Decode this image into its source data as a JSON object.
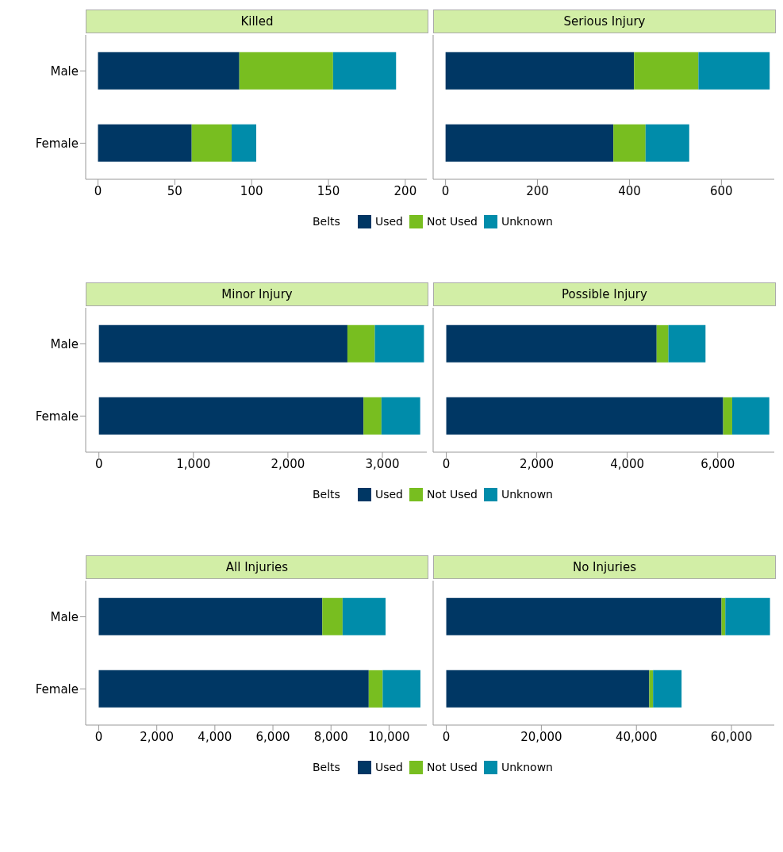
{
  "chart_data": [
    {
      "type": "bar",
      "title": "Killed",
      "orientation": "horizontal",
      "stacked": true,
      "categories": [
        "Male",
        "Female"
      ],
      "xlim": [
        -8,
        214
      ],
      "xticks": [
        0,
        50,
        100,
        150,
        200
      ],
      "legend": "bottom",
      "legend_title": "Belts",
      "grid": false,
      "series": [
        {
          "name": "Used",
          "color": "#003764",
          "values": [
            92,
            61
          ]
        },
        {
          "name": "Not Used",
          "color": "#78be20",
          "values": [
            61,
            26
          ]
        },
        {
          "name": "Unknown",
          "color": "#008caa",
          "values": [
            41,
            16
          ]
        }
      ]
    },
    {
      "type": "bar",
      "title": "Serious Injury",
      "orientation": "horizontal",
      "stacked": true,
      "categories": [
        null,
        null
      ],
      "xlim": [
        -27,
        715
      ],
      "xticks": [
        0,
        200,
        400,
        600
      ],
      "tick_labels": "x",
      "grid": false,
      "series": [
        {
          "color": "#003764",
          "values": [
            410,
            365
          ]
        },
        {
          "color": "#78be20",
          "values": [
            140,
            70
          ]
        },
        {
          "color": "#008caa",
          "values": [
            155,
            95
          ]
        }
      ]
    },
    {
      "type": "bar",
      "title": "Minor Injury",
      "orientation": "horizontal",
      "stacked": true,
      "categories": [
        "Male",
        "Female"
      ],
      "xlim": [
        -140,
        3470
      ],
      "xticks": [
        0,
        {
          "value": 1000,
          "label": "1,000"
        },
        {
          "value": 2000,
          "label": "2,000"
        },
        {
          "value": 3000,
          "label": "3,000"
        }
      ],
      "legend": "bottom",
      "legend_title": "Belts",
      "grid": false,
      "series": [
        {
          "name": "Used",
          "color": "#003764",
          "values": [
            2630,
            2800
          ]
        },
        {
          "name": "Not Used",
          "color": "#78be20",
          "values": [
            290,
            190
          ]
        },
        {
          "name": "Unknown",
          "color": "#008caa",
          "values": [
            520,
            410
          ]
        }
      ]
    },
    {
      "type": "bar",
      "title": "Possible Injury",
      "orientation": "horizontal",
      "stacked": true,
      "categories": [
        null,
        null
      ],
      "xlim": [
        -290,
        7250
      ],
      "xticks": [
        0,
        {
          "value": 2000,
          "label": "2,000"
        },
        {
          "value": 4000,
          "label": "4,000"
        },
        {
          "value": 6000,
          "label": "6,000"
        }
      ],
      "tick_labels": "x",
      "grid": false,
      "series": [
        {
          "color": "#003764",
          "values": [
            4650,
            6120
          ]
        },
        {
          "color": "#78be20",
          "values": [
            260,
            200
          ]
        },
        {
          "color": "#008caa",
          "values": [
            820,
            820
          ]
        }
      ]
    },
    {
      "type": "bar",
      "title": "All Injuries",
      "orientation": "horizontal",
      "stacked": true,
      "categories": [
        "Male",
        "Female"
      ],
      "xlim": [
        -450,
        11300
      ],
      "xticks": [
        0,
        {
          "value": 2000,
          "label": "2,000"
        },
        {
          "value": 4000,
          "label": "4,000"
        },
        {
          "value": 6000,
          "label": "6,000"
        },
        {
          "value": 8000,
          "label": "8,000"
        },
        {
          "value": 10000,
          "label": "10,000"
        }
      ],
      "legend": "bottom",
      "legend_title": "Belts",
      "grid": false,
      "series": [
        {
          "name": "Used",
          "color": "#003764",
          "values": [
            7700,
            9300
          ]
        },
        {
          "name": "Not Used",
          "color": "#78be20",
          "values": [
            700,
            480
          ]
        },
        {
          "name": "Unknown",
          "color": "#008caa",
          "values": [
            1480,
            1300
          ]
        }
      ]
    },
    {
      "type": "bar",
      "title": "No Injuries",
      "orientation": "horizontal",
      "stacked": true,
      "categories": [
        null,
        null
      ],
      "xlim": [
        -2760,
        69000
      ],
      "xticks": [
        0,
        {
          "value": 20000,
          "label": "20,000"
        },
        {
          "value": 40000,
          "label": "40,000"
        },
        {
          "value": 60000,
          "label": "60,000"
        }
      ],
      "tick_labels": "x",
      "grid": false,
      "series": [
        {
          "color": "#003764",
          "values": [
            57900,
            42700
          ]
        },
        {
          "color": "#78be20",
          "values": [
            800,
            800
          ]
        },
        {
          "color": "#008caa",
          "values": [
            9400,
            6000
          ]
        }
      ]
    }
  ]
}
